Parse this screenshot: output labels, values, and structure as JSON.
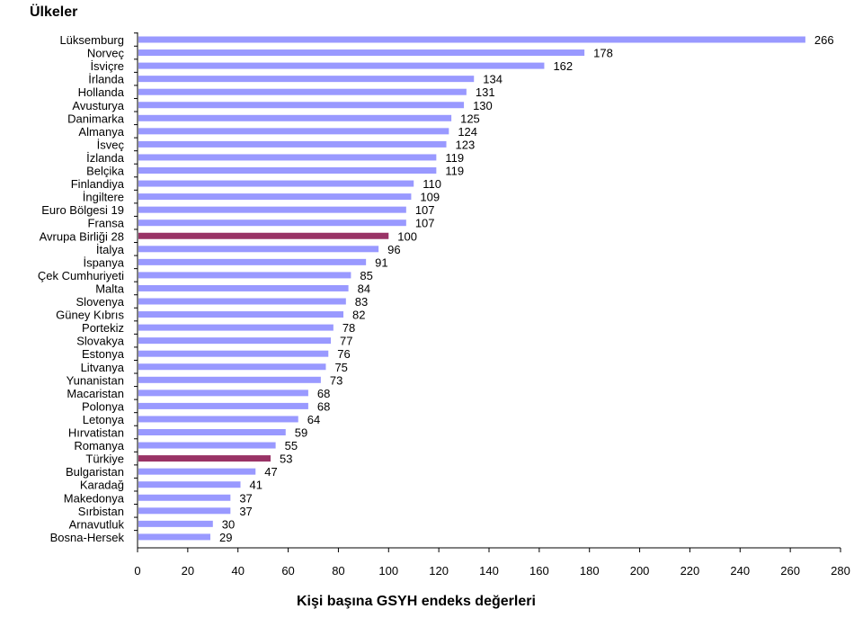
{
  "chart_data": {
    "type": "bar",
    "orientation": "horizontal",
    "ylabel": "Ülkeler",
    "xlabel": "Kişi başına GSYH endeks değerleri",
    "categories": [
      "Lüksemburg",
      "Norveç",
      "İsviçre",
      "İrlanda",
      "Hollanda",
      "Avusturya",
      "Danimarka",
      "Almanya",
      "İsveç",
      "İzlanda",
      "Belçika",
      "Finlandiya",
      "İngiltere",
      "Euro Bölgesi 19",
      "Fransa",
      "Avrupa Birliği 28",
      "İtalya",
      "İspanya",
      "Çek Cumhuriyeti",
      "Malta",
      "Slovenya",
      "Güney Kıbrıs",
      "Portekiz",
      "Slovakya",
      "Estonya",
      "Litvanya",
      "Yunanistan",
      "Macaristan",
      "Polonya",
      "Letonya",
      "Hırvatistan",
      "Romanya",
      "Türkiye",
      "Bulgaristan",
      "Karadağ",
      "Makedonya",
      "Sırbistan",
      "Arnavutluk",
      "Bosna-Hersek"
    ],
    "values": [
      266,
      178,
      162,
      134,
      131,
      130,
      125,
      124,
      123,
      119,
      119,
      110,
      109,
      107,
      107,
      100,
      96,
      91,
      85,
      84,
      83,
      82,
      78,
      77,
      76,
      75,
      73,
      68,
      68,
      64,
      59,
      55,
      53,
      47,
      41,
      37,
      37,
      30,
      29
    ],
    "xlim": [
      0,
      280
    ],
    "xticks": [
      0,
      20,
      40,
      60,
      80,
      100,
      120,
      140,
      160,
      180,
      200,
      220,
      240,
      260,
      280
    ],
    "grid": false,
    "colors": {
      "bar": "#9999ff",
      "highlight": "#993366",
      "axis": "#000000"
    },
    "highlighted": [
      "Avrupa Birliği 28",
      "Türkiye"
    ]
  }
}
